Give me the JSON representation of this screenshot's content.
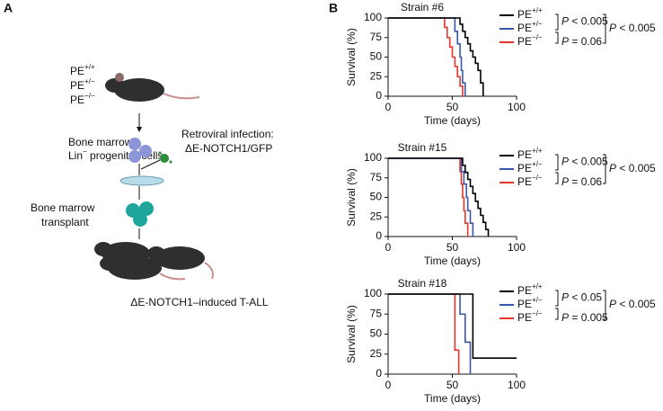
{
  "panels": {
    "a": "A",
    "b": "B"
  },
  "diagram": {
    "genotypes": [
      "PE+/+",
      "PE+/−",
      "PE−/−"
    ],
    "bone_marrow": "Bone marrow",
    "progenitors": "Lin− progenitor cells",
    "infection": [
      "Retroviral infection:",
      "ΔE-NOTCH1/GFP"
    ],
    "transplant": [
      "Bone marrow",
      "transplant"
    ],
    "result": "ΔE-NOTCH1–induced T-ALL"
  },
  "chart_data": [
    {
      "type": "step",
      "title": "Strain #6",
      "xlabel": "Time (days)",
      "ylabel": "Survival (%)",
      "xlim": [
        0,
        100
      ],
      "xticks": [
        0,
        50,
        100
      ],
      "ylim": [
        0,
        100
      ],
      "yticks": [
        0,
        25,
        50,
        75,
        100
      ],
      "legend": "right",
      "series": [
        {
          "name": "PE+/+",
          "color": "#000000",
          "x": [
            0,
            56,
            58,
            60,
            62,
            64,
            66,
            68,
            70,
            72,
            74
          ],
          "values": [
            100,
            92,
            83,
            75,
            67,
            58,
            50,
            42,
            33,
            17,
            0
          ]
        },
        {
          "name": "PE+/−",
          "color": "#3a56a8",
          "x": [
            0,
            52,
            54,
            56,
            57,
            58,
            60
          ],
          "values": [
            100,
            83,
            67,
            50,
            33,
            17,
            0
          ]
        },
        {
          "name": "PE−/−",
          "color": "#e8352b",
          "x": [
            0,
            44,
            46,
            48,
            50,
            52,
            54,
            56,
            58
          ],
          "values": [
            100,
            88,
            75,
            63,
            50,
            38,
            25,
            13,
            0
          ]
        }
      ],
      "annotations": [
        "P < 0.005",
        "P = 0.06",
        "P < 0.005"
      ]
    },
    {
      "type": "step",
      "title": "Strain #15",
      "xlabel": "Time (days)",
      "ylabel": "Survival (%)",
      "xlim": [
        0,
        100
      ],
      "xticks": [
        0,
        50,
        100
      ],
      "ylim": [
        0,
        100
      ],
      "yticks": [
        0,
        25,
        50,
        75,
        100
      ],
      "legend": "right",
      "series": [
        {
          "name": "PE+/+",
          "color": "#000000",
          "x": [
            0,
            58,
            60,
            62,
            64,
            66,
            68,
            70,
            72,
            74,
            76,
            78
          ],
          "values": [
            100,
            91,
            82,
            73,
            64,
            55,
            45,
            36,
            27,
            18,
            9,
            0
          ]
        },
        {
          "name": "PE+/−",
          "color": "#3a56a8",
          "x": [
            0,
            57,
            59,
            61,
            62,
            64,
            66
          ],
          "values": [
            100,
            83,
            67,
            50,
            33,
            17,
            0
          ]
        },
        {
          "name": "PE−/−",
          "color": "#e8352b",
          "x": [
            0,
            56,
            57,
            58,
            59,
            60,
            62
          ],
          "values": [
            100,
            83,
            67,
            50,
            33,
            17,
            0
          ]
        }
      ],
      "annotations": [
        "P < 0.005",
        "P = 0.06",
        "P < 0.005"
      ]
    },
    {
      "type": "step",
      "title": "Strain #18",
      "xlabel": "Time (days)",
      "ylabel": "Survival (%)",
      "xlim": [
        0,
        100
      ],
      "xticks": [
        0,
        50,
        100
      ],
      "ylim": [
        0,
        100
      ],
      "yticks": [
        0,
        25,
        50,
        75,
        100
      ],
      "legend": "right",
      "series": [
        {
          "name": "PE+/+",
          "color": "#000000",
          "x": [
            0,
            66,
            100
          ],
          "values": [
            100,
            20,
            20
          ]
        },
        {
          "name": "PE+/−",
          "color": "#3a56a8",
          "x": [
            0,
            56,
            60,
            64
          ],
          "values": [
            100,
            75,
            40,
            0
          ]
        },
        {
          "name": "PE−/−",
          "color": "#e8352b",
          "x": [
            0,
            52,
            55
          ],
          "values": [
            100,
            30,
            0
          ]
        }
      ],
      "annotations": [
        "P < 0.05",
        "P = 0.005",
        "P < 0.005"
      ]
    }
  ]
}
